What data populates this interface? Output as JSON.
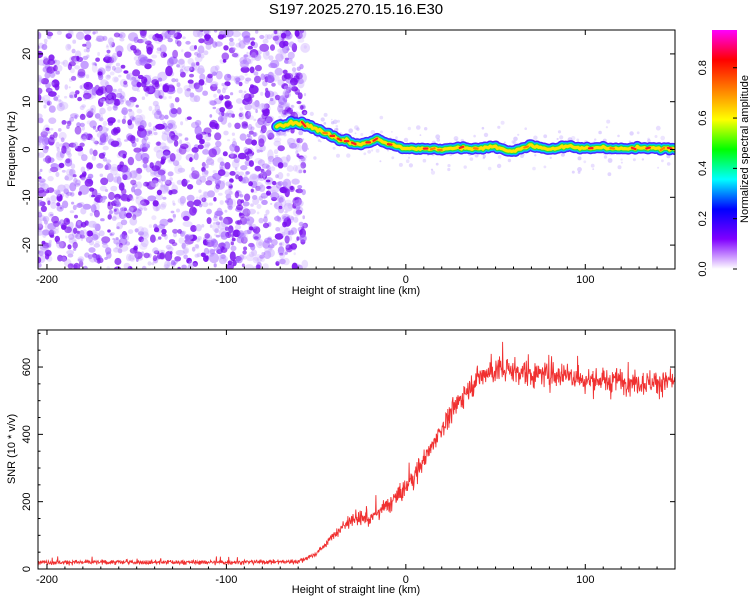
{
  "title": "S197.2025.270.15.16.E30",
  "chart_data": [
    {
      "type": "heatmap",
      "name": "spectrogram",
      "xlabel": "Height of straight line (km)",
      "ylabel": "Frequency (Hz)",
      "xlim": [
        -205,
        150
      ],
      "ylim": [
        -25,
        25
      ],
      "xticks": [
        -200,
        -100,
        0,
        100
      ],
      "yticks": [
        -20,
        -10,
        0,
        10,
        20
      ],
      "noise_region_x": [
        -205,
        -56
      ],
      "signal_start_x": -72,
      "trace": {
        "x": [
          -72,
          -62,
          -54,
          -48,
          -42,
          -34,
          -26,
          -22,
          -16,
          -12,
          -6,
          0,
          10,
          20,
          30,
          40,
          50,
          58,
          64,
          70,
          80,
          90,
          100,
          110,
          120,
          130,
          140,
          150
        ],
        "y": [
          5.2,
          5.6,
          5.0,
          4.0,
          3.0,
          1.8,
          1.0,
          1.4,
          2.2,
          1.5,
          0.8,
          0.3,
          0.2,
          0.0,
          0.4,
          0.2,
          0.6,
          -0.5,
          0.3,
          0.8,
          0.1,
          0.6,
          0.2,
          0.5,
          0.1,
          0.3,
          0.2,
          0.2
        ]
      },
      "colorbar": {
        "label": "Normalized spectral amplitude",
        "ticks": [
          0.0,
          0.2,
          0.4,
          0.6,
          0.8
        ],
        "tick_labels": [
          "0.0",
          "0.2",
          "0.4",
          "0.6",
          "0.8"
        ],
        "range": [
          0,
          0.95
        ],
        "colormap": [
          "#ffffff",
          "#8000ff",
          "#0000ff",
          "#00ffff",
          "#00ff00",
          "#ffff00",
          "#ff8000",
          "#ff0000",
          "#ff00ff"
        ]
      }
    },
    {
      "type": "line",
      "name": "snr",
      "xlabel": "Height of straight line (km)",
      "ylabel": "SNR (10 * v/v)",
      "xlim": [
        -205,
        150
      ],
      "ylim": [
        0,
        710
      ],
      "xticks": [
        -200,
        -100,
        0,
        100
      ],
      "yticks": [
        0,
        200,
        400,
        600
      ],
      "color": "#f03030",
      "envelope": {
        "x": [
          -205,
          -150,
          -100,
          -60,
          -50,
          -40,
          -30,
          -20,
          -10,
          0,
          10,
          20,
          30,
          40,
          50,
          60,
          70,
          80,
          90,
          100,
          110,
          120,
          130,
          140,
          150
        ],
        "y": [
          20,
          20,
          20,
          22,
          45,
          100,
          150,
          150,
          190,
          240,
          320,
          420,
          500,
          570,
          590,
          590,
          580,
          575,
          580,
          560,
          560,
          560,
          555,
          555,
          555
        ]
      }
    }
  ]
}
